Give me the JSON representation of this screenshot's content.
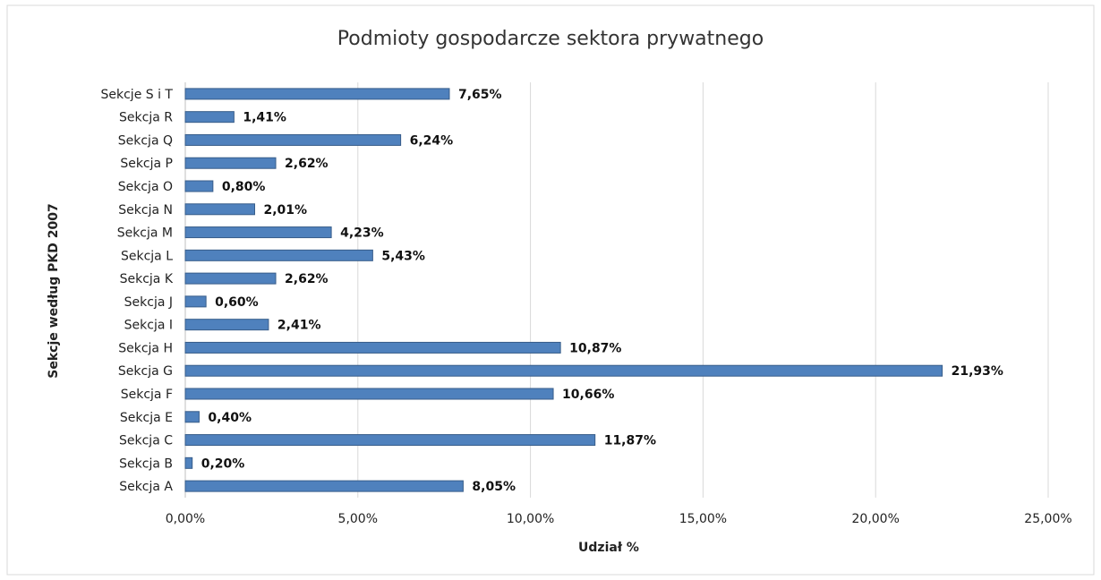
{
  "chart_data": {
    "type": "bar",
    "orientation": "horizontal",
    "title": "Podmioty gospodarcze sektora prywatnego",
    "x_label": "Udział %",
    "y_label": "Sekcje według PKD 2007",
    "categories": [
      "Sekcje S i T",
      "Sekcja R",
      "Sekcja Q",
      "Sekcja P",
      "Sekcja O",
      "Sekcja N",
      "Sekcja M",
      "Sekcja L",
      "Sekcja K",
      "Sekcja J",
      "Sekcja I",
      "Sekcja H",
      "Sekcja G",
      "Sekcja F",
      "Sekcja E",
      "Sekcja C",
      "Sekcja B",
      "Sekcja A"
    ],
    "values": [
      7.65,
      1.41,
      6.24,
      2.62,
      0.8,
      2.01,
      4.23,
      5.43,
      2.62,
      0.6,
      2.41,
      10.87,
      21.93,
      10.66,
      0.4,
      11.87,
      0.2,
      8.05
    ],
    "value_labels": [
      "7,65%",
      "1,41%",
      "6,24%",
      "2,62%",
      "0,80%",
      "2,01%",
      "4,23%",
      "5,43%",
      "2,62%",
      "0,60%",
      "2,41%",
      "10,87%",
      "21,93%",
      "10,66%",
      "0,40%",
      "11,87%",
      "0,20%",
      "8,05%"
    ],
    "color": "#4f81bd",
    "xlim": [
      0,
      25
    ],
    "xticks": [
      {
        "value": 0,
        "label": "0,00%"
      },
      {
        "value": 5,
        "label": "5,00%"
      },
      {
        "value": 10,
        "label": "10,00%"
      },
      {
        "value": 15,
        "label": "15,00%"
      },
      {
        "value": 20,
        "label": "20,00%"
      },
      {
        "value": 25,
        "label": "25,00%"
      }
    ],
    "grid": true
  }
}
